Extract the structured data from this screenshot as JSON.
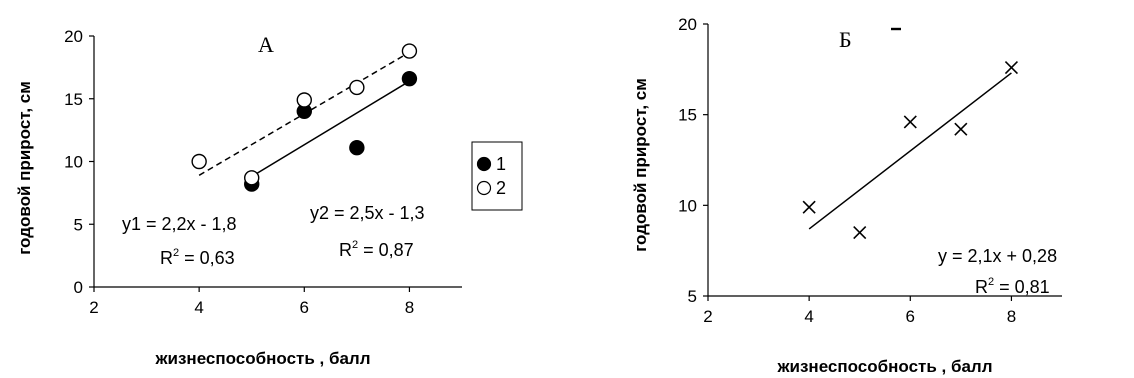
{
  "chart_data": [
    {
      "type": "scatter",
      "panel_label": "А",
      "xlabel": "жизнеспособность , балл",
      "ylabel": "годовой прирост, см",
      "xlim": [
        2,
        9
      ],
      "ylim": [
        0,
        20
      ],
      "xticks": [
        "2",
        "4",
        "6",
        "8"
      ],
      "yticks": [
        "0",
        "5",
        "10",
        "15",
        "20"
      ],
      "grid": false,
      "legend_position": "right",
      "series": [
        {
          "name": "1",
          "marker": "filled-circle",
          "x": [
            5,
            6,
            7,
            8
          ],
          "y": [
            8.2,
            14,
            11.1,
            16.6
          ]
        },
        {
          "name": "2",
          "marker": "open-circle",
          "x": [
            4,
            5,
            6,
            7,
            8
          ],
          "y": [
            10,
            8.7,
            14.9,
            15.9,
            18.8
          ]
        }
      ],
      "trendlines": [
        {
          "series": "1",
          "style": "solid",
          "x": [
            5,
            8
          ],
          "y": [
            8.8,
            16.4
          ]
        },
        {
          "series": "2",
          "style": "dashed",
          "x": [
            4,
            8
          ],
          "y": [
            8.9,
            18.7
          ]
        }
      ],
      "annotations": [
        {
          "eq": "y1 = 2,2x - 1,8",
          "r2_prefix": "R",
          "r2_sup": "2",
          "r2_suffix": " = 0,63"
        },
        {
          "eq": "y2 = 2,5x - 1,3",
          "r2_prefix": "R",
          "r2_sup": "2",
          "r2_suffix": " = 0,87"
        }
      ]
    },
    {
      "type": "scatter",
      "panel_label": "Б",
      "xlabel": "жизнеспособность , балл",
      "ylabel": "годовой прирост, см",
      "xlim": [
        2,
        9
      ],
      "ylim": [
        5,
        20
      ],
      "xticks": [
        "2",
        "4",
        "6",
        "8"
      ],
      "yticks": [
        "5",
        "10",
        "15",
        "20"
      ],
      "grid": false,
      "series": [
        {
          "name": "",
          "marker": "x",
          "x": [
            4,
            5,
            6,
            7,
            8
          ],
          "y": [
            9.9,
            8.5,
            14.6,
            14.2,
            17.6
          ]
        }
      ],
      "trendlines": [
        {
          "style": "solid",
          "x": [
            4,
            8
          ],
          "y": [
            8.7,
            17.3
          ]
        }
      ],
      "annotations": [
        {
          "eq": "y = 2,1x + 0,28",
          "r2_prefix": "R",
          "r2_sup": "2",
          "r2_suffix": " = 0,81"
        }
      ]
    }
  ]
}
